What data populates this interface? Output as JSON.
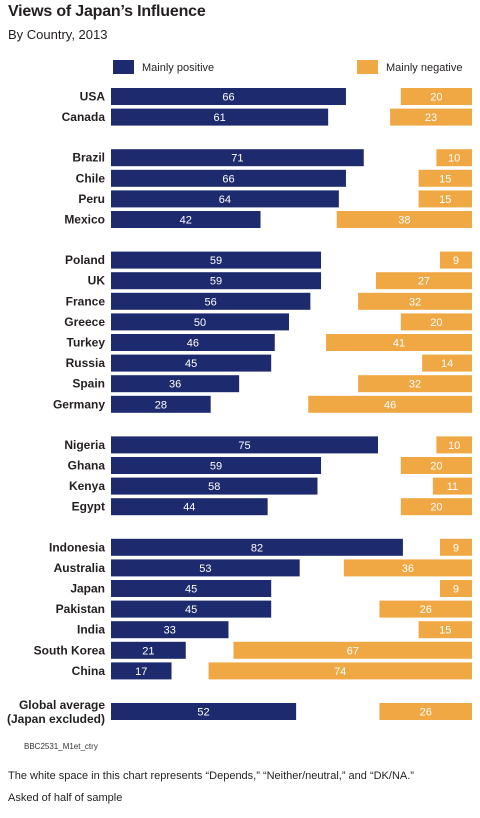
{
  "title": "Views of Japan’s Influence",
  "subtitle": "By Country, 2013",
  "footnotes": {
    "code": "BBC2531_M1et_ctry",
    "note": "The white space in this chart represents “Depends,” “Neither/neutral,” and “DK/NA.”",
    "sample": "Asked of half of sample"
  },
  "colors": {
    "positive": "#1d2a6e",
    "negative": "#f0a844"
  },
  "chart_data": {
    "type": "bar",
    "orientation": "horizontal",
    "legend_position": "top",
    "xlim": [
      0,
      100
    ],
    "series": [
      {
        "name": "Mainly positive",
        "color": "#1d2a6e"
      },
      {
        "name": "Mainly negative",
        "color": "#f0a844"
      }
    ],
    "groups": [
      {
        "rows": [
          {
            "country": "USA",
            "positive": 66,
            "negative": 20
          },
          {
            "country": "Canada",
            "positive": 61,
            "negative": 23
          }
        ]
      },
      {
        "rows": [
          {
            "country": "Brazil",
            "positive": 71,
            "negative": 10
          },
          {
            "country": "Chile",
            "positive": 66,
            "negative": 15
          },
          {
            "country": "Peru",
            "positive": 64,
            "negative": 15
          },
          {
            "country": "Mexico",
            "positive": 42,
            "negative": 38
          }
        ]
      },
      {
        "rows": [
          {
            "country": "Poland",
            "positive": 59,
            "negative": 9
          },
          {
            "country": "UK",
            "positive": 59,
            "negative": 27
          },
          {
            "country": "France",
            "positive": 56,
            "negative": 32
          },
          {
            "country": "Greece",
            "positive": 50,
            "negative": 20
          },
          {
            "country": "Turkey",
            "positive": 46,
            "negative": 41
          },
          {
            "country": "Russia",
            "positive": 45,
            "negative": 14
          },
          {
            "country": "Spain",
            "positive": 36,
            "negative": 32
          },
          {
            "country": "Germany",
            "positive": 28,
            "negative": 46
          }
        ]
      },
      {
        "rows": [
          {
            "country": "Nigeria",
            "positive": 75,
            "negative": 10
          },
          {
            "country": "Ghana",
            "positive": 59,
            "negative": 20
          },
          {
            "country": "Kenya",
            "positive": 58,
            "negative": 11
          },
          {
            "country": "Egypt",
            "positive": 44,
            "negative": 20
          }
        ]
      },
      {
        "rows": [
          {
            "country": "Indonesia",
            "positive": 82,
            "negative": 9
          },
          {
            "country": "Australia",
            "positive": 53,
            "negative": 36
          },
          {
            "country": "Japan",
            "positive": 45,
            "negative": 9
          },
          {
            "country": "Pakistan",
            "positive": 45,
            "negative": 26
          },
          {
            "country": "India",
            "positive": 33,
            "negative": 15
          },
          {
            "country": "South Korea",
            "positive": 21,
            "negative": 67
          },
          {
            "country": "China",
            "positive": 17,
            "negative": 74
          }
        ]
      },
      {
        "rows": [
          {
            "country": "Global average",
            "country_line2": "(Japan excluded)",
            "positive": 52,
            "negative": 26
          }
        ]
      }
    ]
  }
}
